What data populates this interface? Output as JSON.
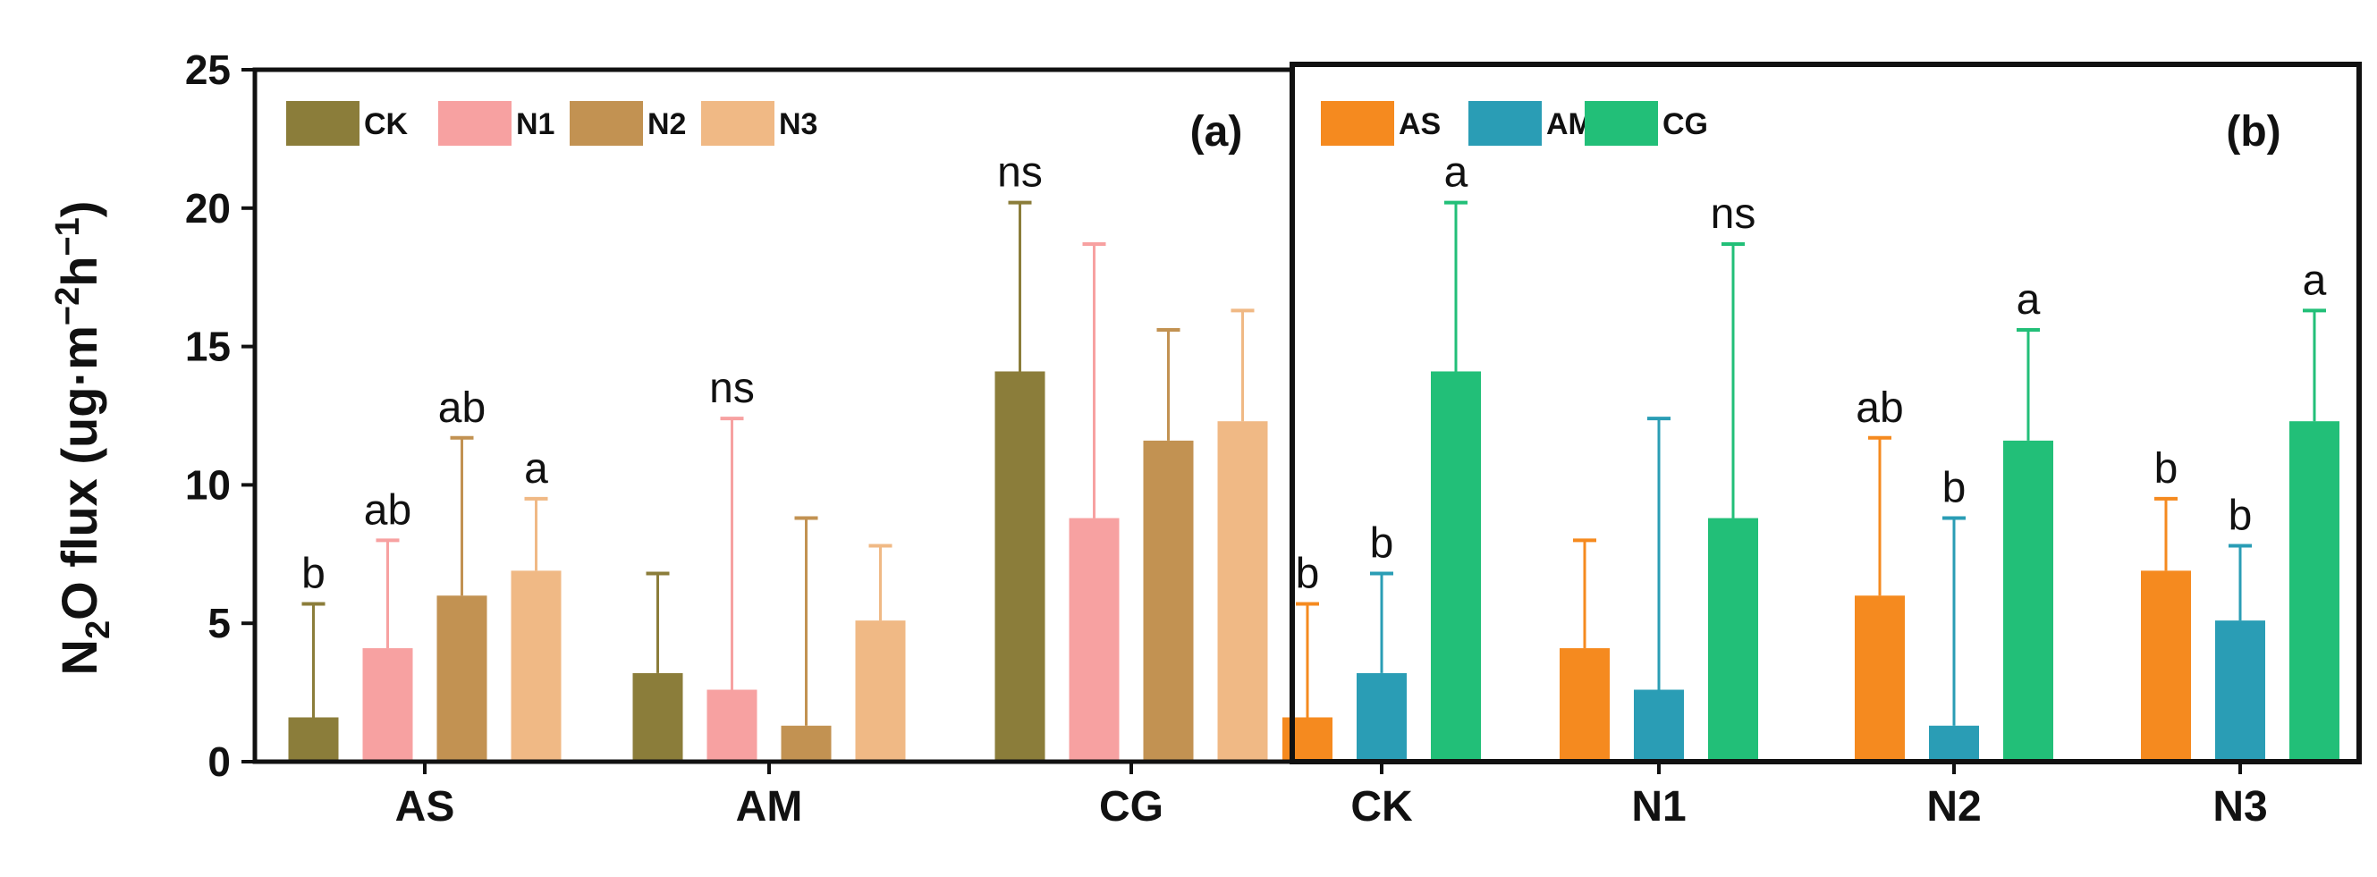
{
  "figure": {
    "ylabel_prefix": "N",
    "ylabel_sub": "2",
    "ylabel_main": "O flux (ug·m",
    "ylabel_sup1": "−2",
    "ylabel_mid": "h",
    "ylabel_sup2": "−1",
    "ylabel_end": ")"
  },
  "chart_data": [
    {
      "type": "bar",
      "panel_label": "(a)",
      "ylim": [
        0,
        25
      ],
      "yticks": [
        "0",
        "5",
        "10",
        "15",
        "20",
        "25"
      ],
      "ylabel": "N2O flux (ug·m−2h−1)",
      "categories": [
        "AS",
        "AM",
        "CG"
      ],
      "legend_position": "top-left",
      "series": [
        {
          "name": "CK",
          "color": "#8B7D3A",
          "values": [
            1.6,
            3.2,
            14.1
          ],
          "errors": [
            4.1,
            3.6,
            6.1
          ]
        },
        {
          "name": "N1",
          "color": "#F7A1A1",
          "values": [
            4.1,
            2.6,
            8.8
          ],
          "errors": [
            3.9,
            9.8,
            9.9
          ]
        },
        {
          "name": "N2",
          "color": "#C29252",
          "values": [
            6.0,
            1.3,
            11.6
          ],
          "errors": [
            5.7,
            7.5,
            4.0
          ]
        },
        {
          "name": "N3",
          "color": "#F0B985",
          "values": [
            6.9,
            5.1,
            12.3
          ],
          "errors": [
            2.6,
            2.7,
            4.0
          ]
        }
      ],
      "significance": [
        {
          "category": "AS",
          "labels": [
            "b",
            "ab",
            "ab",
            "a"
          ]
        },
        {
          "category": "AM",
          "labels": [
            "ns"
          ]
        },
        {
          "category": "CG",
          "labels": [
            "ns"
          ]
        }
      ]
    },
    {
      "type": "bar",
      "panel_label": "(b)",
      "ylim": [
        0,
        25
      ],
      "categories": [
        "CK",
        "N1",
        "N2",
        "N3"
      ],
      "legend_position": "top-left",
      "series": [
        {
          "name": "AS",
          "color": "#F58A1F",
          "values": [
            1.6,
            4.1,
            6.0,
            6.9
          ],
          "errors": [
            4.1,
            3.9,
            5.7,
            2.6
          ]
        },
        {
          "name": "AM",
          "color": "#2A9DB5",
          "values": [
            3.2,
            2.6,
            1.3,
            5.1
          ],
          "errors": [
            3.6,
            9.8,
            7.5,
            2.7
          ]
        },
        {
          "name": "CG",
          "color": "#22BF78",
          "values": [
            14.1,
            8.8,
            11.6,
            12.3
          ],
          "errors": [
            6.1,
            9.9,
            4.0,
            4.0
          ]
        }
      ],
      "significance": [
        {
          "category": "CK",
          "labels": [
            "b",
            "b",
            "a"
          ]
        },
        {
          "category": "N1",
          "labels": [
            "ns"
          ]
        },
        {
          "category": "N2",
          "labels": [
            "ab",
            "b",
            "a"
          ]
        },
        {
          "category": "N3",
          "labels": [
            "b",
            "b",
            "a"
          ]
        }
      ]
    }
  ]
}
